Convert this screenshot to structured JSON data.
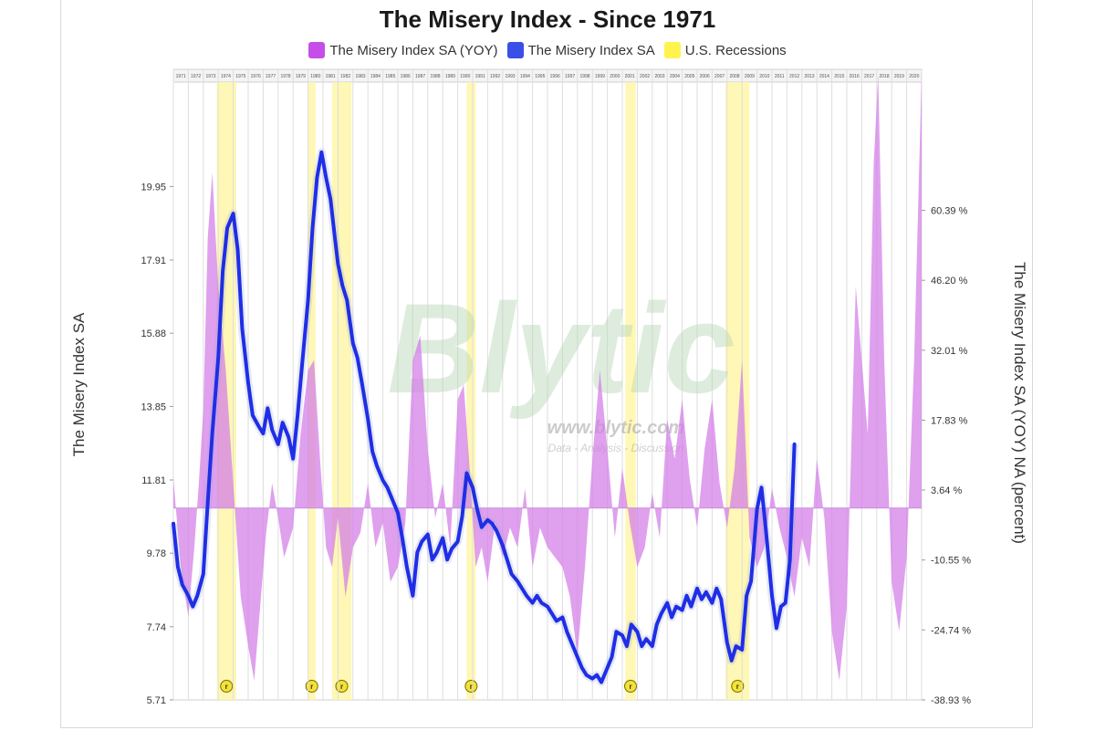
{
  "chart_data": {
    "type": "line",
    "title": "The Misery Index - Since 1971",
    "ylabel": "The Misery Index SA",
    "y2label": "The Misery Index SA (YOY) NA (percent)",
    "legend_position": "top-center",
    "grid": true,
    "ylim": [
      5.71,
      23.2
    ],
    "y2lim": [
      -38.93,
      89.0
    ],
    "left_ticks": [
      "19.95",
      "17.91",
      "15.88",
      "13.85",
      "11.81",
      "9.78",
      "7.74",
      "5.71"
    ],
    "right_ticks": [
      "60.39 %",
      "46.20 %",
      "32.01 %",
      "17.83 %",
      "3.64 %",
      "-10.55 %",
      "-24.74 %",
      "-38.93 %"
    ],
    "x_start_year": 1971,
    "x_end_year": 2021,
    "series": [
      {
        "name": "The Misery Index SA (YOY)",
        "type": "area",
        "color": "#d27ce8",
        "points": [
          [
            1971,
            6
          ],
          [
            1971.5,
            -12
          ],
          [
            1972,
            -22
          ],
          [
            1972.4,
            -8
          ],
          [
            1972.7,
            5
          ],
          [
            1973,
            20
          ],
          [
            1973.3,
            55
          ],
          [
            1973.6,
            68
          ],
          [
            1974,
            45
          ],
          [
            1974.5,
            28
          ],
          [
            1975,
            5
          ],
          [
            1975.5,
            -18
          ],
          [
            1976,
            -28
          ],
          [
            1976.4,
            -35
          ],
          [
            1976.8,
            -20
          ],
          [
            1977.2,
            -5
          ],
          [
            1977.6,
            5
          ],
          [
            1978,
            -2
          ],
          [
            1978.4,
            -10
          ],
          [
            1979,
            -4
          ],
          [
            1979.5,
            15
          ],
          [
            1980,
            28
          ],
          [
            1980.4,
            30
          ],
          [
            1980.8,
            10
          ],
          [
            1981.2,
            -8
          ],
          [
            1981.6,
            -12
          ],
          [
            1982,
            -2
          ],
          [
            1982.5,
            -18
          ],
          [
            1983,
            -8
          ],
          [
            1983.5,
            -5
          ],
          [
            1984,
            5
          ],
          [
            1984.5,
            -8
          ],
          [
            1985,
            -3
          ],
          [
            1985.5,
            -15
          ],
          [
            1986,
            -12
          ],
          [
            1986.5,
            -3
          ],
          [
            1987,
            30
          ],
          [
            1987.5,
            35
          ],
          [
            1988,
            12
          ],
          [
            1988.5,
            -2
          ],
          [
            1989,
            5
          ],
          [
            1989.5,
            -8
          ],
          [
            1990,
            22
          ],
          [
            1990.4,
            25
          ],
          [
            1990.8,
            8
          ],
          [
            1991.2,
            -12
          ],
          [
            1991.6,
            -8
          ],
          [
            1992,
            -15
          ],
          [
            1992.5,
            -3
          ],
          [
            1993,
            -10
          ],
          [
            1993.5,
            -4
          ],
          [
            1994,
            -8
          ],
          [
            1994.5,
            4
          ],
          [
            1995,
            -12
          ],
          [
            1995.5,
            -4
          ],
          [
            1996,
            -8
          ],
          [
            1996.5,
            -10
          ],
          [
            1997,
            -12
          ],
          [
            1997.5,
            -18
          ],
          [
            1998,
            -30
          ],
          [
            1998.5,
            -12
          ],
          [
            1999,
            10
          ],
          [
            1999.5,
            28
          ],
          [
            2000,
            12
          ],
          [
            2000.5,
            -6
          ],
          [
            2001,
            8
          ],
          [
            2001.5,
            -3
          ],
          [
            2002,
            -12
          ],
          [
            2002.5,
            -8
          ],
          [
            2003,
            3
          ],
          [
            2003.5,
            -6
          ],
          [
            2004,
            18
          ],
          [
            2004.5,
            10
          ],
          [
            2005,
            22
          ],
          [
            2005.5,
            6
          ],
          [
            2006,
            -4
          ],
          [
            2006.5,
            12
          ],
          [
            2007,
            22
          ],
          [
            2007.5,
            5
          ],
          [
            2008,
            -4
          ],
          [
            2008.5,
            8
          ],
          [
            2009,
            30
          ],
          [
            2009.5,
            -6
          ],
          [
            2010,
            -12
          ],
          [
            2010.5,
            -8
          ],
          [
            2011,
            4
          ],
          [
            2011.5,
            -4
          ],
          [
            2012,
            -10
          ],
          [
            2012.5,
            -18
          ],
          [
            2013,
            -6
          ],
          [
            2013.5,
            -12
          ],
          [
            2014,
            10
          ],
          [
            2014.5,
            -2
          ],
          [
            2015,
            -25
          ],
          [
            2015.5,
            -35
          ],
          [
            2016,
            -20
          ],
          [
            2016.6,
            45
          ],
          [
            2017,
            30
          ],
          [
            2017.4,
            15
          ],
          [
            2017.8,
            70
          ],
          [
            2018.1,
            88
          ],
          [
            2018.5,
            30
          ],
          [
            2019,
            -15
          ],
          [
            2019.5,
            -25
          ],
          [
            2020,
            -10
          ],
          [
            2020.5,
            30
          ],
          [
            2021,
            88
          ]
        ]
      },
      {
        "name": "The Misery Index SA",
        "type": "line",
        "color": "#1f2ee6",
        "points": [
          [
            1971,
            10.6
          ],
          [
            1971.3,
            9.4
          ],
          [
            1971.6,
            8.9
          ],
          [
            1972,
            8.6
          ],
          [
            1972.3,
            8.3
          ],
          [
            1972.6,
            8.6
          ],
          [
            1973,
            9.2
          ],
          [
            1973.3,
            11.2
          ],
          [
            1973.6,
            13.1
          ],
          [
            1974,
            15.2
          ],
          [
            1974.3,
            17.6
          ],
          [
            1974.6,
            18.8
          ],
          [
            1975,
            19.2
          ],
          [
            1975.3,
            18.2
          ],
          [
            1975.6,
            16.0
          ],
          [
            1976,
            14.5
          ],
          [
            1976.3,
            13.6
          ],
          [
            1976.7,
            13.3
          ],
          [
            1977,
            13.1
          ],
          [
            1977.3,
            13.8
          ],
          [
            1977.6,
            13.2
          ],
          [
            1978,
            12.8
          ],
          [
            1978.3,
            13.4
          ],
          [
            1978.7,
            13.0
          ],
          [
            1979,
            12.4
          ],
          [
            1979.3,
            13.6
          ],
          [
            1979.6,
            15.0
          ],
          [
            1980,
            16.8
          ],
          [
            1980.3,
            18.8
          ],
          [
            1980.6,
            20.2
          ],
          [
            1980.9,
            20.9
          ],
          [
            1981.2,
            20.2
          ],
          [
            1981.5,
            19.6
          ],
          [
            1981.8,
            18.5
          ],
          [
            1982,
            17.8
          ],
          [
            1982.3,
            17.2
          ],
          [
            1982.6,
            16.8
          ],
          [
            1983,
            15.6
          ],
          [
            1983.3,
            15.2
          ],
          [
            1983.6,
            14.5
          ],
          [
            1984,
            13.5
          ],
          [
            1984.3,
            12.6
          ],
          [
            1984.6,
            12.2
          ],
          [
            1985,
            11.8
          ],
          [
            1985.3,
            11.6
          ],
          [
            1985.6,
            11.3
          ],
          [
            1986,
            10.9
          ],
          [
            1986.3,
            10.2
          ],
          [
            1986.6,
            9.4
          ],
          [
            1987,
            8.6
          ],
          [
            1987.3,
            9.8
          ],
          [
            1987.6,
            10.1
          ],
          [
            1988,
            10.3
          ],
          [
            1988.3,
            9.6
          ],
          [
            1988.6,
            9.8
          ],
          [
            1989,
            10.2
          ],
          [
            1989.3,
            9.6
          ],
          [
            1989.6,
            9.9
          ],
          [
            1990,
            10.1
          ],
          [
            1990.3,
            10.8
          ],
          [
            1990.6,
            12.0
          ],
          [
            1991,
            11.6
          ],
          [
            1991.3,
            11.0
          ],
          [
            1991.6,
            10.5
          ],
          [
            1992,
            10.7
          ],
          [
            1992.3,
            10.6
          ],
          [
            1992.6,
            10.4
          ],
          [
            1993,
            10.0
          ],
          [
            1993.3,
            9.6
          ],
          [
            1993.6,
            9.2
          ],
          [
            1994,
            9.0
          ],
          [
            1994.3,
            8.8
          ],
          [
            1994.6,
            8.6
          ],
          [
            1995,
            8.4
          ],
          [
            1995.3,
            8.6
          ],
          [
            1995.6,
            8.4
          ],
          [
            1996,
            8.3
          ],
          [
            1996.3,
            8.1
          ],
          [
            1996.6,
            7.9
          ],
          [
            1997,
            8.0
          ],
          [
            1997.3,
            7.6
          ],
          [
            1997.6,
            7.3
          ],
          [
            1998,
            6.9
          ],
          [
            1998.3,
            6.6
          ],
          [
            1998.6,
            6.4
          ],
          [
            1999,
            6.3
          ],
          [
            1999.3,
            6.4
          ],
          [
            1999.6,
            6.2
          ],
          [
            2000,
            6.6
          ],
          [
            2000.3,
            6.9
          ],
          [
            2000.6,
            7.6
          ],
          [
            2001,
            7.5
          ],
          [
            2001.3,
            7.2
          ],
          [
            2001.6,
            7.8
          ],
          [
            2002,
            7.6
          ],
          [
            2002.3,
            7.2
          ],
          [
            2002.6,
            7.4
          ],
          [
            2003,
            7.2
          ],
          [
            2003.3,
            7.8
          ],
          [
            2003.6,
            8.1
          ],
          [
            2004,
            8.4
          ],
          [
            2004.3,
            8.0
          ],
          [
            2004.6,
            8.3
          ],
          [
            2005,
            8.2
          ],
          [
            2005.3,
            8.6
          ],
          [
            2005.6,
            8.3
          ],
          [
            2006,
            8.8
          ],
          [
            2006.3,
            8.5
          ],
          [
            2006.6,
            8.7
          ],
          [
            2007,
            8.4
          ],
          [
            2007.3,
            8.8
          ],
          [
            2007.6,
            8.5
          ],
          [
            2008,
            7.3
          ],
          [
            2008.3,
            6.8
          ],
          [
            2008.6,
            7.2
          ],
          [
            2009,
            7.1
          ],
          [
            2009.3,
            8.6
          ],
          [
            2009.6,
            9.0
          ],
          [
            2010,
            11.0
          ],
          [
            2010.3,
            11.6
          ],
          [
            2010.6,
            10.4
          ],
          [
            2011,
            8.6
          ],
          [
            2011.3,
            7.7
          ],
          [
            2011.6,
            8.3
          ],
          [
            2011.9,
            8.4
          ],
          [
            2012.2,
            9.6
          ],
          [
            2012.5,
            12.8
          ]
        ]
      }
    ],
    "recessions": [
      [
        1973.9,
        1975.2
      ],
      [
        1980.0,
        1980.5
      ],
      [
        1981.6,
        1982.9
      ],
      [
        1990.6,
        1991.2
      ],
      [
        2001.2,
        2001.9
      ],
      [
        2007.9,
        2009.5
      ]
    ],
    "recession_color": "#fff6a8",
    "watermark_text": "Blytic",
    "watermark_url": "www.blytic.com",
    "watermark_tagline": "Data - Analysis - Discussion"
  },
  "legend": [
    {
      "label": "The Misery Index SA (YOY)",
      "color": "#c54ee8"
    },
    {
      "label": "The Misery Index SA",
      "color": "#3a4fe8"
    },
    {
      "label": "U.S. Recessions",
      "color": "#fff34d"
    }
  ]
}
